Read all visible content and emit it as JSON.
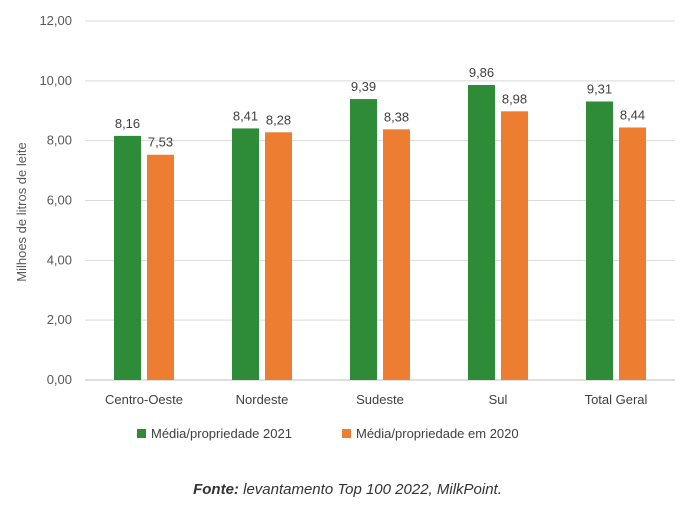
{
  "chart_data": {
    "type": "bar",
    "ylabel": "Milhoes de litros de leite",
    "ylim": [
      0,
      12
    ],
    "yticks": [
      "0,00",
      "2,00",
      "4,00",
      "6,00",
      "8,00",
      "10,00",
      "12,00"
    ],
    "ytick_values": [
      0,
      2,
      4,
      6,
      8,
      10,
      12
    ],
    "grid": true,
    "legend_position": "bottom",
    "categories": [
      "Centro-Oeste",
      "Nordeste",
      "Sudeste",
      "Sul",
      "Total Geral"
    ],
    "series": [
      {
        "name": "Média/propriedade 2021",
        "color": "#2e8b38",
        "values": [
          8.16,
          8.41,
          9.39,
          9.86,
          9.31
        ],
        "labels": [
          "8,16",
          "8,41",
          "9,39",
          "9,86",
          "9,31"
        ]
      },
      {
        "name": "Média/propriedade em 2020",
        "color": "#ed7d31",
        "values": [
          7.53,
          8.28,
          8.38,
          8.98,
          8.44
        ],
        "labels": [
          "7,53",
          "8,28",
          "8,38",
          "8,98",
          "8,44"
        ]
      }
    ]
  },
  "caption": {
    "source_label": "Fonte:",
    "source_text": " levantamento Top 100 2022, MilkPoint."
  }
}
